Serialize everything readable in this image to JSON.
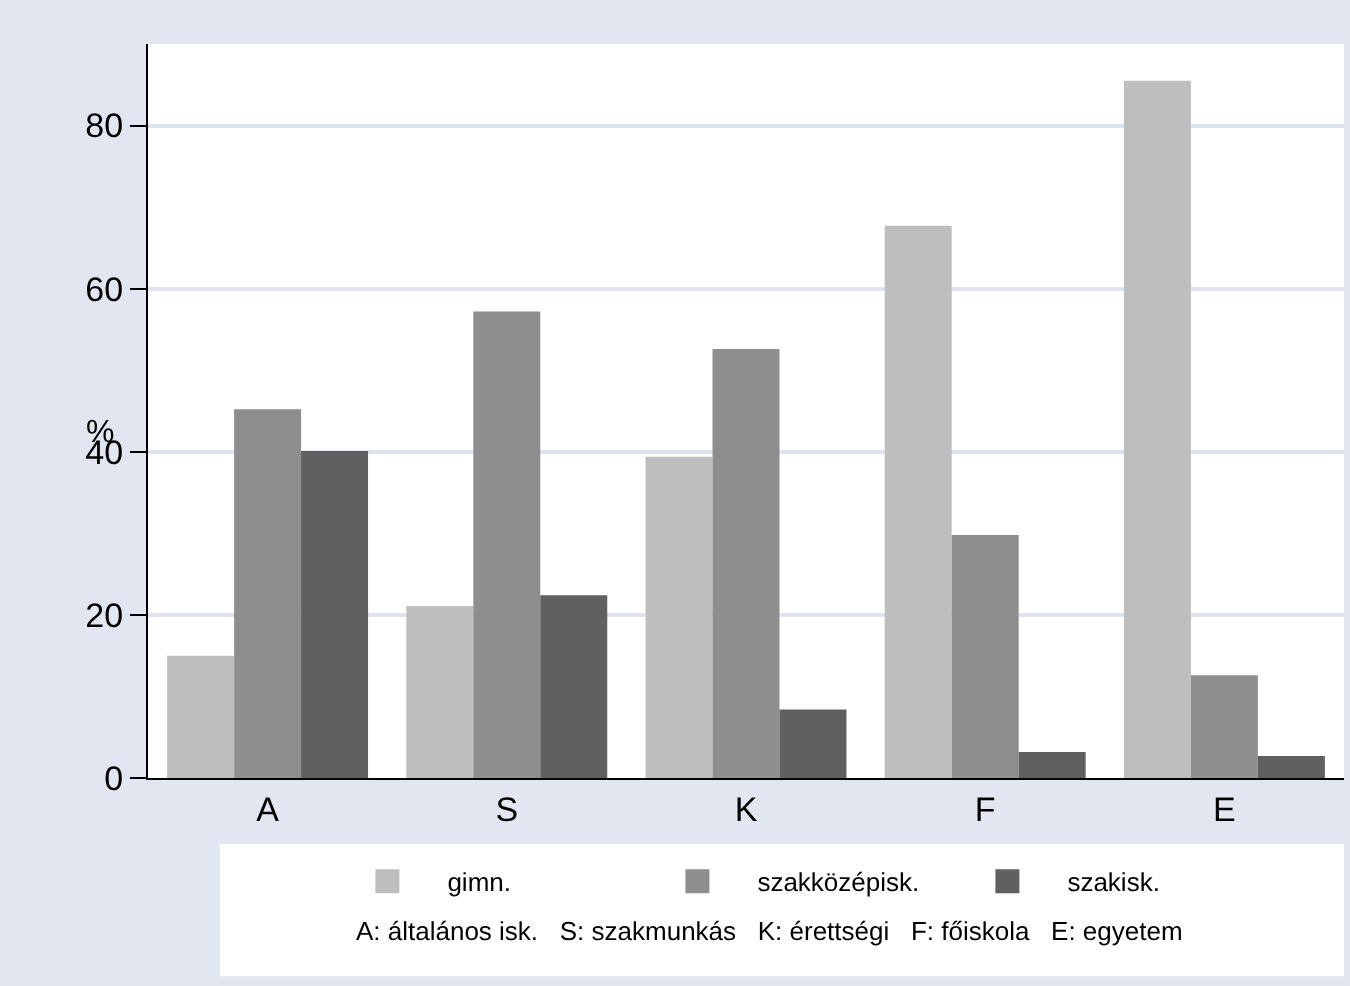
{
  "chart_data": {
    "type": "bar",
    "ylabel": "%",
    "categories": [
      "A",
      "S",
      "K",
      "F",
      "E"
    ],
    "series": [
      {
        "name": "gimn.",
        "color": "#bebebe",
        "values": [
          15.0,
          21.1,
          39.4,
          67.7,
          85.5
        ]
      },
      {
        "name": "szakközépisk.",
        "color": "#8e8e8e",
        "values": [
          45.2,
          57.2,
          52.6,
          29.8,
          12.6
        ]
      },
      {
        "name": "szakisk.",
        "color": "#606060",
        "values": [
          40.1,
          22.4,
          8.4,
          3.2,
          2.7
        ]
      }
    ],
    "ylim": [
      0,
      90
    ],
    "yticks": [
      0,
      20,
      40,
      60,
      80
    ],
    "grid": "y",
    "legend": "bottom",
    "annotations": [
      "A: általános isk.   S: szakmunkás   K: érettségi   F: főiskola   E: egyetem"
    ]
  }
}
